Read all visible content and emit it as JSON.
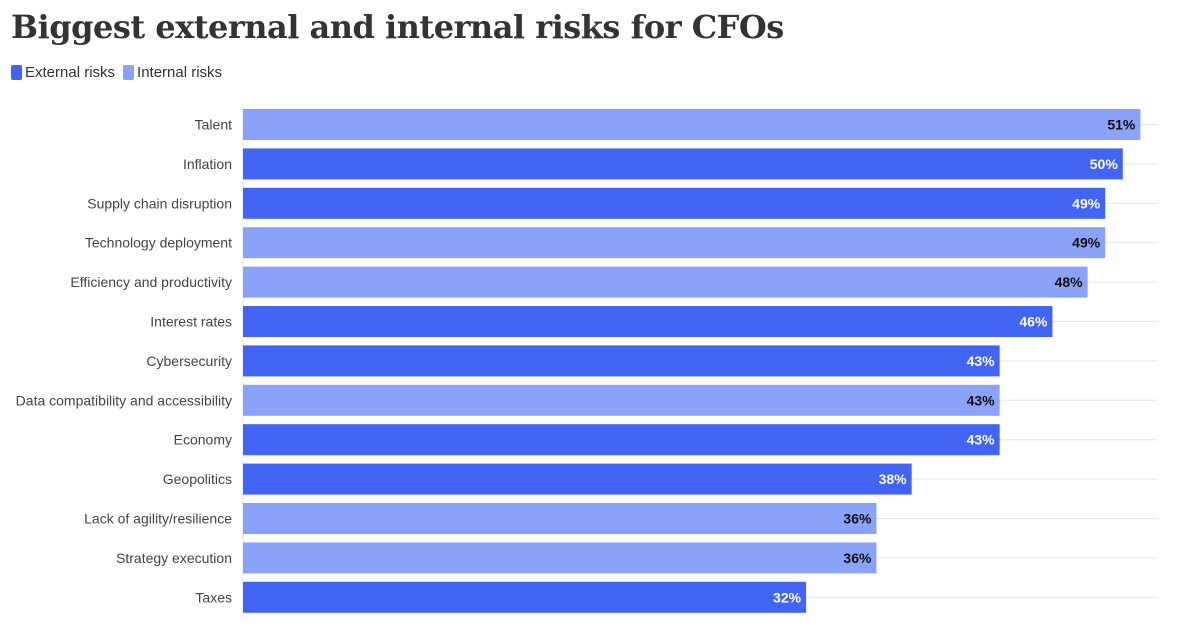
{
  "title": "Biggest external and internal risks for CFOs",
  "legend": {
    "external": "External risks",
    "internal": "Internal risks"
  },
  "colors": {
    "external": "#4264f2",
    "internal": "#8ba2f9",
    "grid": "#e6e6e6",
    "label_on_external": "#ffffff",
    "label_on_internal": "#111111"
  },
  "chart_data": {
    "type": "bar",
    "orientation": "horizontal",
    "title": "Biggest external and internal risks for CFOs",
    "xlim": [
      0,
      52
    ],
    "grid": true,
    "legend_position": "top-left",
    "categories": [
      "Talent",
      "Inflation",
      "Supply chain disruption",
      "Technology deployment",
      "Efficiency and productivity",
      "Interest rates",
      "Cybersecurity",
      "Data compatibility and accessibility",
      "Economy",
      "Geopolitics",
      "Lack of agility/resilience",
      "Strategy execution",
      "Taxes"
    ],
    "values": [
      51,
      50,
      49,
      49,
      48,
      46,
      43,
      43,
      43,
      38,
      36,
      36,
      32
    ],
    "value_labels": [
      "51%",
      "50%",
      "49%",
      "49%",
      "48%",
      "46%",
      "43%",
      "43%",
      "43%",
      "38%",
      "36%",
      "36%",
      "32%"
    ],
    "groups": [
      "internal",
      "external",
      "external",
      "internal",
      "internal",
      "external",
      "external",
      "internal",
      "external",
      "external",
      "internal",
      "internal",
      "external"
    ],
    "series": [
      {
        "name": "External risks",
        "key": "external"
      },
      {
        "name": "Internal risks",
        "key": "internal"
      }
    ]
  }
}
